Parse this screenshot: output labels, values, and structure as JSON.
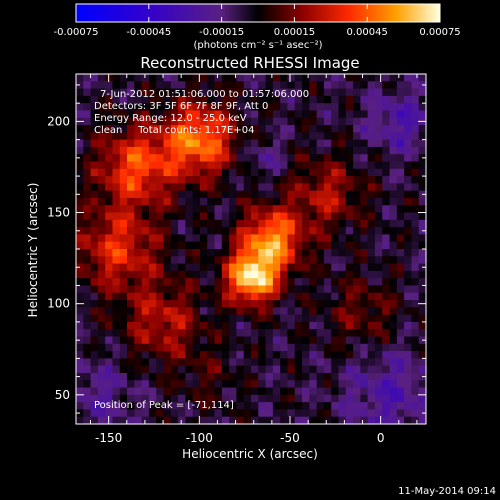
{
  "chart_data": {
    "type": "heatmap",
    "title": "Reconstructed RHESSI Image",
    "xlabel": "Heliocentric X (arcsec)",
    "ylabel": "Heliocentric Y (arcsec)",
    "xlim": [
      -168,
      25
    ],
    "ylim": [
      34,
      226
    ],
    "x_ticks": [
      -150,
      -100,
      -50,
      0
    ],
    "y_ticks": [
      50,
      100,
      150,
      200
    ],
    "colorbar": {
      "range": [
        -0.00075,
        0.00075
      ],
      "tick_labels": [
        "-0.00075",
        "-0.00045",
        "-0.00015",
        "0.00015",
        "0.00045",
        "0.00075"
      ],
      "unit_label": "(photons cm⁻² s⁻¹ asec⁻²)"
    },
    "info_lines": [
      "7-Jun-2012 01:51:06.000 to 01:57:06.000",
      "Detectors: 3F 5F 6F 7F 8F 9F, Att 0",
      "Energy Range: 12.0 - 25.0 keV",
      "Clean     Total counts: 1.17E+04"
    ],
    "peak_label": "Position of Peak = [-71,114]",
    "peak": {
      "x": -71,
      "y": 114,
      "value": 0.00075
    },
    "sources": [
      {
        "x": -71,
        "y": 114,
        "value": 0.00072,
        "sigma": 10
      },
      {
        "x": -60,
        "y": 135,
        "value": 0.00058,
        "sigma": 12
      },
      {
        "x": -100,
        "y": 190,
        "value": 0.00055,
        "sigma": 14
      },
      {
        "x": -135,
        "y": 175,
        "value": 0.00045,
        "sigma": 15
      },
      {
        "x": -145,
        "y": 130,
        "value": 0.00038,
        "sigma": 16
      },
      {
        "x": -120,
        "y": 90,
        "value": 0.0003,
        "sigma": 15
      },
      {
        "x": -30,
        "y": 160,
        "value": 0.00028,
        "sigma": 14
      },
      {
        "x": -10,
        "y": 95,
        "value": 0.00018,
        "sigma": 14
      },
      {
        "x": -95,
        "y": 60,
        "value": 0.0001,
        "sigma": 12
      },
      {
        "x": 10,
        "y": 200,
        "value": -0.00022,
        "sigma": 12
      },
      {
        "x": 5,
        "y": 50,
        "value": -0.0002,
        "sigma": 18
      },
      {
        "x": -155,
        "y": 50,
        "value": -0.00015,
        "sigma": 14
      },
      {
        "x": -65,
        "y": 180,
        "value": -0.00014,
        "sigma": 8
      }
    ],
    "grid": false
  },
  "footer_date": "11-May-2014 09:14",
  "colors": {
    "background": "#000000",
    "text": "#ffffff"
  }
}
